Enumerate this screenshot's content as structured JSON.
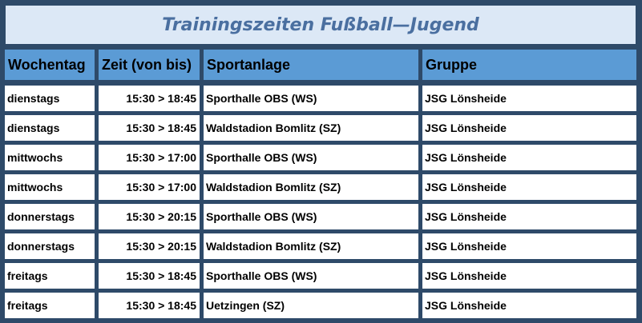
{
  "title": "Trainingszeiten Fußball—Jugend",
  "header": {
    "day": "Wochentag",
    "time": "Zeit (von bis)",
    "venue": "Sportanlage",
    "group": "Gruppe"
  },
  "rows": [
    {
      "day": "dienstags",
      "time": "15:30 > 18:45",
      "venue": "Sporthalle OBS (WS)",
      "group": "JSG Lönsheide"
    },
    {
      "day": "dienstags",
      "time": "15:30 > 18:45",
      "venue": "Waldstadion Bomlitz (SZ)",
      "group": "JSG Lönsheide"
    },
    {
      "day": "mittwochs",
      "time": "15:30 > 17:00",
      "venue": "Sporthalle OBS (WS)",
      "group": "JSG Lönsheide"
    },
    {
      "day": "mittwochs",
      "time": "15:30 > 17:00",
      "venue": "Waldstadion Bomlitz (SZ)",
      "group": "JSG Lönsheide"
    },
    {
      "day": "donnerstags",
      "time": "15:30 > 20:15",
      "venue": "Sporthalle OBS (WS)",
      "group": "JSG Lönsheide"
    },
    {
      "day": "donnerstags",
      "time": "15:30 > 20:15",
      "venue": "Waldstadion Bomlitz (SZ)",
      "group": "JSG Lönsheide"
    },
    {
      "day": "freitags",
      "time": "15:30 > 18:45",
      "venue": "Sporthalle OBS (WS)",
      "group": "JSG Lönsheide"
    },
    {
      "day": "freitags",
      "time": "15:30 > 18:45",
      "venue": "Uetzingen (SZ)",
      "group": "JSG Lönsheide"
    }
  ]
}
